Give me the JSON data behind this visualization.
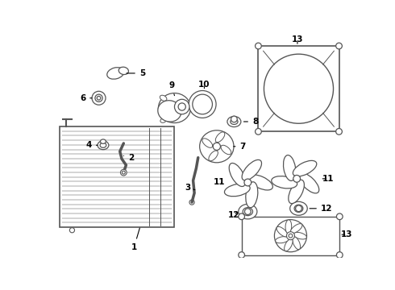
{
  "bg_color": "#ffffff",
  "line_color": "#555555",
  "label_color": "#000000",
  "lw": 0.9,
  "font_size": 7.5
}
